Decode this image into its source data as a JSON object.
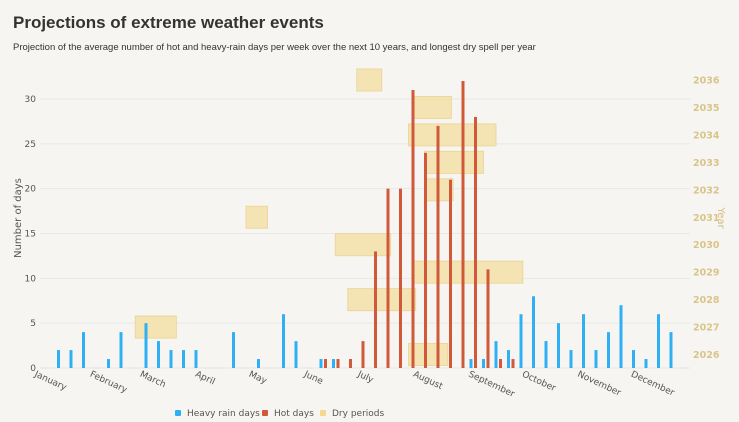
{
  "chart_data": {
    "type": "bar",
    "title": "Projections of extreme weather events",
    "subtitle": "Projection of the average number of hot and heavy-rain days per week over the next 10 years, and longest dry spell per year",
    "ylabel": "Number of days",
    "ylabel_right": "Year",
    "ylim": [
      0,
      30
    ],
    "yticks": [
      0,
      5,
      10,
      15,
      20,
      25,
      30
    ],
    "ylim_right": [
      2026,
      2036
    ],
    "yticks_right": [
      "2026",
      "2027",
      "2028",
      "2029",
      "2030",
      "2031",
      "2032",
      "2033",
      "2034",
      "2035",
      "2036"
    ],
    "x_unit": "week",
    "month_labels": [
      "January",
      "February",
      "March",
      "April",
      "May",
      "June",
      "July",
      "August",
      "September",
      "October",
      "November",
      "December"
    ],
    "grid": true,
    "legend_position": "bottom",
    "weeks": [
      1,
      2,
      3,
      4,
      5,
      6,
      7,
      8,
      9,
      10,
      11,
      12,
      13,
      14,
      15,
      16,
      17,
      18,
      19,
      20,
      21,
      22,
      23,
      24,
      25,
      26,
      27,
      28,
      29,
      30,
      31,
      32,
      33,
      34,
      35,
      36,
      37,
      38,
      39,
      40,
      41,
      42,
      43,
      44,
      45,
      46,
      47,
      48,
      49,
      50,
      51,
      52
    ],
    "series": [
      {
        "name": "Heavy rain days",
        "color": "#2fb0f5",
        "values": [
          0,
          2,
          2,
          4,
          0,
          1,
          4,
          0,
          5,
          3,
          2,
          2,
          2,
          0,
          0,
          4,
          0,
          1,
          0,
          6,
          3,
          0,
          1,
          1,
          0,
          0,
          0,
          0,
          0,
          0,
          0,
          0,
          0,
          0,
          1,
          1,
          3,
          2,
          6,
          8,
          3,
          5,
          2,
          6,
          2,
          4,
          7,
          2,
          1,
          6,
          4,
          0
        ]
      },
      {
        "name": "Hot days",
        "color": "#d0593a",
        "values": [
          0,
          0,
          0,
          0,
          0,
          0,
          0,
          0,
          0,
          0,
          0,
          0,
          0,
          0,
          0,
          0,
          0,
          0,
          0,
          0,
          0,
          0,
          1,
          1,
          1,
          3,
          13,
          20,
          20,
          31,
          24,
          27,
          21,
          32,
          28,
          11,
          1,
          1,
          0,
          0,
          0,
          0,
          0,
          0,
          0,
          0,
          0,
          0,
          0,
          0,
          0,
          0
        ]
      }
    ],
    "dry_periods": {
      "name": "Dry periods",
      "color": "#f5e0a8",
      "items": [
        {
          "year": 2026,
          "start": "07-23",
          "end": "08-14"
        },
        {
          "year": 2027,
          "start": "02-20",
          "end": "03-15"
        },
        {
          "year": 2028,
          "start": "06-19",
          "end": "07-27"
        },
        {
          "year": 2029,
          "start": "07-26",
          "end": "09-25"
        },
        {
          "year": 2030,
          "start": "06-12",
          "end": "07-13"
        },
        {
          "year": 2031,
          "start": "04-23",
          "end": "05-05"
        },
        {
          "year": 2032,
          "start": "08-02",
          "end": "08-17"
        },
        {
          "year": 2033,
          "start": "08-01",
          "end": "09-03"
        },
        {
          "year": 2034,
          "start": "07-23",
          "end": "09-10"
        },
        {
          "year": 2035,
          "start": "07-26",
          "end": "08-16"
        },
        {
          "year": 2036,
          "start": "06-24",
          "end": "07-08"
        }
      ]
    }
  }
}
